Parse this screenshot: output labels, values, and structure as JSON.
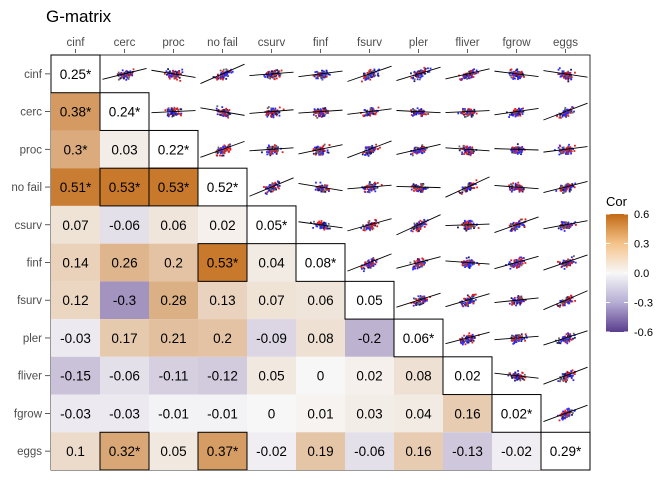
{
  "chart_data": {
    "type": "heatmap",
    "title": "G-matrix",
    "variables": [
      "cinf",
      "cerc",
      "proc",
      "no fail",
      "csurv",
      "finf",
      "fsurv",
      "pler",
      "fliver",
      "fgrow",
      "eggs"
    ],
    "lower_triangle_with_diagonal": [
      [
        "0.25*"
      ],
      [
        "0.38*",
        "0.24*"
      ],
      [
        "0.3*",
        "0.03",
        "0.22*"
      ],
      [
        "0.51*",
        "0.53*",
        "0.53*",
        "0.52*"
      ],
      [
        "0.07",
        "-0.06",
        "0.06",
        "0.02",
        "0.05*"
      ],
      [
        "0.14",
        "0.26",
        "0.2",
        "0.53*",
        "0.04",
        "0.08*"
      ],
      [
        "0.12",
        "-0.3",
        "0.28",
        "0.13",
        "0.07",
        "0.06",
        "0.05"
      ],
      [
        "-0.03",
        "0.17",
        "0.21",
        "0.2",
        "-0.09",
        "0.08",
        "-0.2",
        "0.06*"
      ],
      [
        "-0.15",
        "-0.06",
        "-0.11",
        "-0.12",
        "0.05",
        "0",
        "0.02",
        "0.08",
        "0.02"
      ],
      [
        "-0.03",
        "-0.03",
        "-0.01",
        "-0.01",
        "0",
        "0.01",
        "0.03",
        "0.04",
        "0.16",
        "0.02*"
      ],
      [
        "0.1",
        "0.32*",
        "0.05",
        "0.37*",
        "-0.02",
        "0.19",
        "-0.06",
        "0.16",
        "-0.13",
        "-0.02",
        "0.29*"
      ]
    ],
    "boxed_cells": [
      [
        4,
        2
      ],
      [
        4,
        3
      ],
      [
        6,
        4
      ],
      [
        11,
        2
      ],
      [
        11,
        4
      ]
    ],
    "upper_triangle": "scatterplots with fitted lines (red and blue points)",
    "legend": {
      "title": "Cor",
      "ticks": [
        "0.6",
        "0.3",
        "0.0",
        "-0.3",
        "-0.6"
      ],
      "range": [
        -0.6,
        0.6
      ],
      "colors": {
        "negative": "#5a3d8e",
        "zero": "#f7f7f7",
        "positive": "#c26a14"
      }
    }
  }
}
